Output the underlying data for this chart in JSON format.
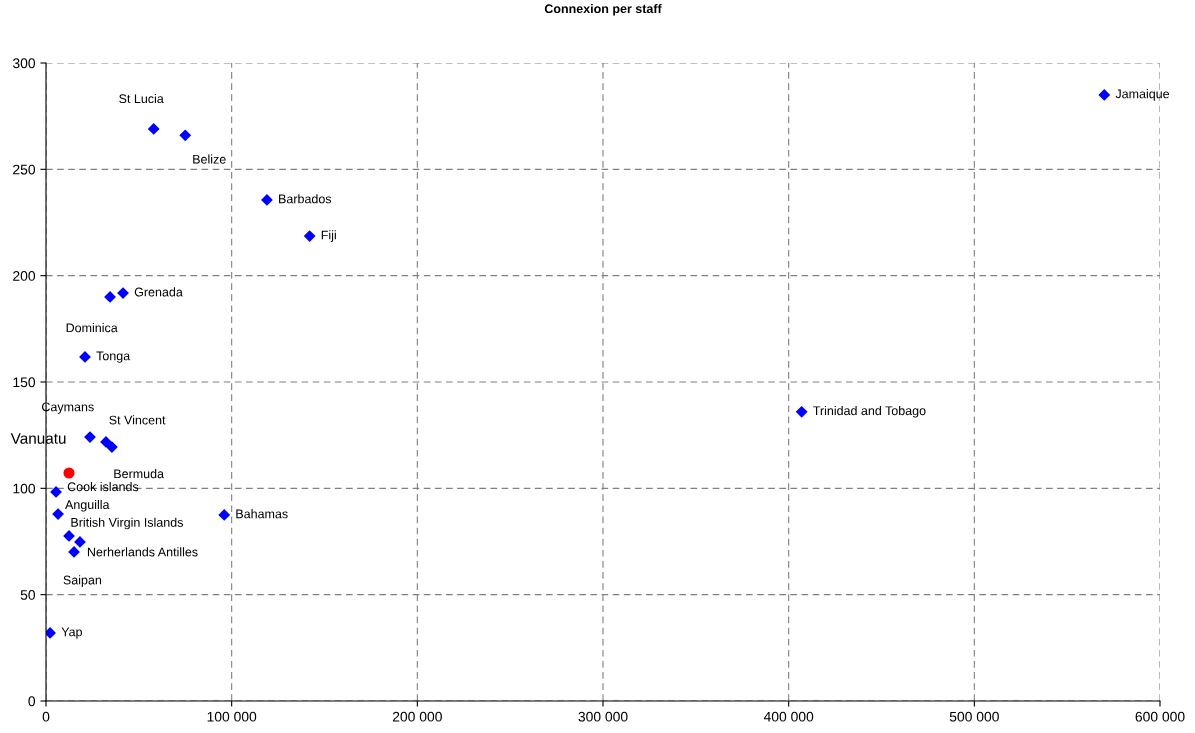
{
  "chart_data": {
    "type": "scatter",
    "title": "Connexion per staff",
    "series": [
      {
        "marker": "diamond",
        "x": [
          570000,
          407000,
          58000,
          75000,
          119000,
          142000,
          41500,
          34500,
          21000,
          23700,
          32300,
          35500,
          12400,
          5400,
          6500,
          96000,
          12400,
          18300,
          15100,
          2200
        ],
        "values": [
          285,
          136,
          269,
          266,
          235.6,
          218.6,
          191.8,
          190,
          161.8,
          124.1,
          121.8,
          119.4,
          107.2,
          98.3,
          87.9,
          87.5,
          77.6,
          74.8,
          70.1,
          32
        ],
        "colors": [
          "#0000ff",
          "#0000ff",
          "#0000ff",
          "#0000ff",
          "#0000ff",
          "#0000ff",
          "#0000ff",
          "#0000ff",
          "#0000ff",
          "#0000ff",
          "#0000ff",
          "#0000ff",
          "#ff0000",
          "#0000ff",
          "#0000ff",
          "#0000ff",
          "#0000ff",
          "#0000ff",
          "#0000ff",
          "#0000ff"
        ]
      }
    ],
    "annotations": [
      {
        "text": "Jamaique",
        "x": 570000,
        "y": 285
      },
      {
        "text": "Trinidad and Tobago",
        "x": 407000,
        "y": 136
      },
      {
        "text": "St Lucia",
        "x": 58000,
        "y": 269
      },
      {
        "text": "Belize",
        "x": 75000,
        "y": 266
      },
      {
        "text": "Barbados",
        "x": 119000,
        "y": 235.6
      },
      {
        "text": "Fiji",
        "x": 142000,
        "y": 218.6
      },
      {
        "text": "Grenada",
        "x": 41500,
        "y": 191.8
      },
      {
        "text": "Dominica",
        "x": 34500,
        "y": 190
      },
      {
        "text": "Tonga",
        "x": 21000,
        "y": 161.8
      },
      {
        "text": "Caymans",
        "x": 23700,
        "y": 124.1
      },
      {
        "text": "St Vincent",
        "x": 32300,
        "y": 121.8
      },
      {
        "text": "Bermuda",
        "x": 35500,
        "y": 119.4
      },
      {
        "text": "Vanuatu",
        "x": 12400,
        "y": 107.2
      },
      {
        "text": "Cook islands",
        "x": 5400,
        "y": 98.3
      },
      {
        "text": "Anguilla",
        "x": 6500,
        "y": 87.9
      },
      {
        "text": "Bahamas",
        "x": 96000,
        "y": 87.5
      },
      {
        "text": "British Virgin Islands",
        "x": 12400,
        "y": 77.6
      },
      {
        "text": "Nerherlands Antilles",
        "x": 18300,
        "y": 74.8
      },
      {
        "text": "Saipan",
        "x": 15100,
        "y": 70.1
      },
      {
        "text": "Yap",
        "x": 2200,
        "y": 32
      }
    ],
    "xlim": [
      0,
      600000
    ],
    "xticks": [
      0,
      {
        "value": 100000,
        "label": "100 000"
      },
      {
        "value": 200000,
        "label": "200 000"
      },
      {
        "value": 300000,
        "label": "300 000"
      },
      {
        "value": 400000,
        "label": "400 000"
      },
      {
        "value": 500000,
        "label": "500 000"
      },
      {
        "value": 600000,
        "label": "600 000"
      }
    ],
    "ylim": [
      0,
      300
    ],
    "yticks": [
      0,
      50,
      100,
      150,
      200,
      250,
      300
    ],
    "grid": true,
    "legend": false
  }
}
